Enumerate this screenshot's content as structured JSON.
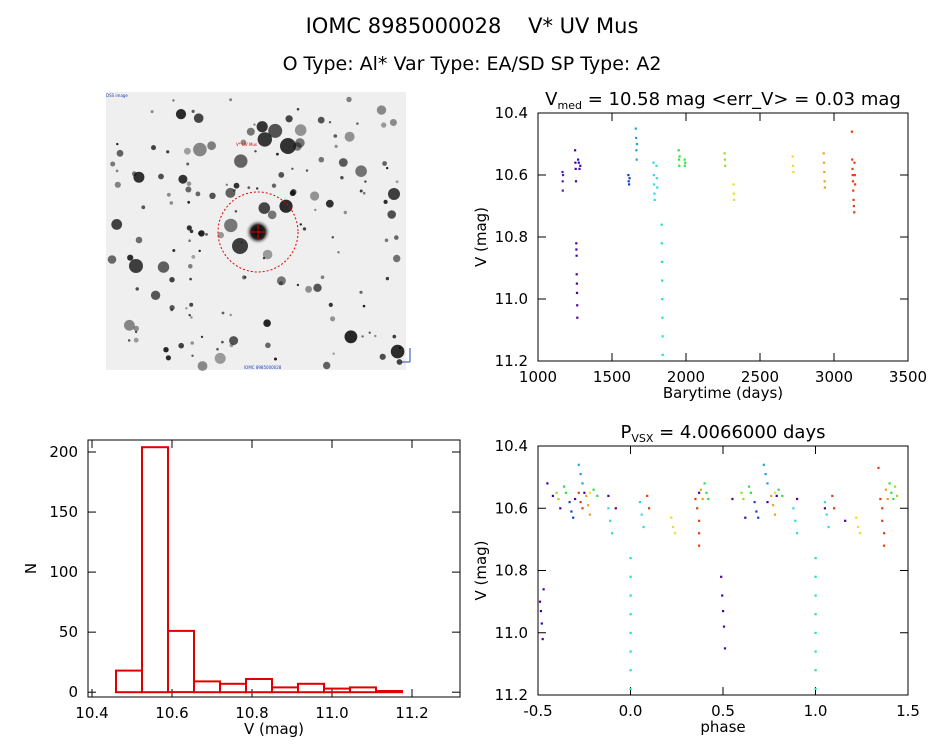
{
  "header": {
    "title_line1": "IOMC 8985000028    V* UV Mus",
    "title_line2": "O Type: Al*  Var Type: EA/SD  SP Type: A2"
  },
  "image_panel": {
    "top_left_label": "DSS image",
    "target_label": "V* UV Mus",
    "bottom_label": "IOMC 8985000028"
  },
  "chart_data": [
    {
      "type": "scatter",
      "title_main": "V",
      "title_sub": "med",
      "title_rest": " = 10.58 mag <err_V> = 0.03 mag",
      "xlabel": "Barytime (days)",
      "ylabel": "V (mag)",
      "xlim": [
        1000,
        3500
      ],
      "ylim": [
        10.4,
        11.2
      ],
      "y_inverted": true,
      "xticks": [
        1000,
        1500,
        2000,
        2500,
        3000,
        3500
      ],
      "yticks": [
        10.4,
        10.6,
        10.8,
        11.0,
        11.2
      ],
      "series": [
        {
          "color": "#5a1aa8",
          "points": [
            [
              1165,
              10.59
            ],
            [
              1166,
              10.62
            ],
            [
              1167,
              10.65
            ],
            [
              1168,
              10.6
            ]
          ]
        },
        {
          "color": "#4b00a0",
          "points": [
            [
              1250,
              10.52
            ],
            [
              1252,
              10.56
            ],
            [
              1254,
              10.58
            ],
            [
              1256,
              10.62
            ],
            [
              1258,
              10.82
            ],
            [
              1259,
              10.84
            ],
            [
              1260,
              10.86
            ],
            [
              1261,
              10.92
            ],
            [
              1262,
              10.95
            ],
            [
              1263,
              10.98
            ],
            [
              1264,
              11.02
            ],
            [
              1265,
              11.06
            ]
          ]
        },
        {
          "color": "#2a10c0",
          "points": [
            [
              1270,
              10.55
            ],
            [
              1275,
              10.56
            ],
            [
              1280,
              10.58
            ],
            [
              1285,
              10.57
            ]
          ]
        },
        {
          "color": "#1040d0",
          "points": [
            [
              1610,
              10.6
            ],
            [
              1612,
              10.62
            ],
            [
              1615,
              10.63
            ],
            [
              1618,
              10.61
            ]
          ]
        },
        {
          "color": "#1fa0e0",
          "points": [
            [
              1660,
              10.45
            ],
            [
              1662,
              10.48
            ],
            [
              1664,
              10.52
            ],
            [
              1666,
              10.55
            ],
            [
              1668,
              10.5
            ]
          ]
        },
        {
          "color": "#30d8e8",
          "points": [
            [
              1780,
              10.56
            ],
            [
              1782,
              10.6
            ],
            [
              1784,
              10.63
            ],
            [
              1786,
              10.66
            ],
            [
              1788,
              10.68
            ],
            [
              1800,
              10.57
            ],
            [
              1802,
              10.61
            ],
            [
              1805,
              10.64
            ]
          ]
        },
        {
          "color": "#20e8a0",
          "points": [
            [
              1835,
              10.76
            ],
            [
              1836,
              10.82
            ],
            [
              1837,
              10.88
            ],
            [
              1838,
              10.94
            ],
            [
              1839,
              11.0
            ],
            [
              1840,
              11.06
            ],
            [
              1841,
              11.12
            ],
            [
              1842,
              11.18
            ]
          ]
        },
        {
          "color": "#30e040",
          "points": [
            [
              1950,
              10.52
            ],
            [
              1952,
              10.55
            ],
            [
              1954,
              10.57
            ],
            [
              1956,
              10.54
            ],
            [
              1990,
              10.55
            ],
            [
              1992,
              10.57
            ],
            [
              1994,
              10.56
            ]
          ]
        },
        {
          "color": "#90e020",
          "points": [
            [
              2260,
              10.53
            ],
            [
              2262,
              10.55
            ],
            [
              2264,
              10.57
            ]
          ]
        },
        {
          "color": "#e8e020",
          "points": [
            [
              2320,
              10.63
            ],
            [
              2322,
              10.66
            ],
            [
              2324,
              10.68
            ],
            [
              2720,
              10.54
            ],
            [
              2722,
              10.57
            ],
            [
              2724,
              10.59
            ]
          ]
        },
        {
          "color": "#f0a020",
          "points": [
            [
              2930,
              10.53
            ],
            [
              2932,
              10.56
            ],
            [
              2934,
              10.59
            ],
            [
              2936,
              10.62
            ],
            [
              2938,
              10.64
            ]
          ]
        },
        {
          "color": "#e04010",
          "points": [
            [
              3120,
              10.46
            ],
            [
              3122,
              10.55
            ],
            [
              3124,
              10.58
            ],
            [
              3126,
              10.6
            ],
            [
              3128,
              10.62
            ],
            [
              3130,
              10.65
            ],
            [
              3132,
              10.68
            ],
            [
              3134,
              10.7
            ],
            [
              3136,
              10.72
            ],
            [
              3138,
              10.56
            ],
            [
              3140,
              10.6
            ],
            [
              3142,
              10.63
            ]
          ]
        }
      ]
    },
    {
      "type": "bar",
      "xlabel": "V (mag)",
      "ylabel": "N",
      "xlim": [
        10.39,
        11.32
      ],
      "ylim": [
        -4,
        210
      ],
      "xticks": [
        10.4,
        10.6,
        10.8,
        11.0,
        11.2
      ],
      "yticks": [
        0,
        50,
        100,
        150,
        200
      ],
      "bin_edges": [
        10.46,
        10.525,
        10.59,
        10.655,
        10.72,
        10.785,
        10.85,
        10.915,
        10.98,
        11.045,
        11.11,
        11.175,
        11.24
      ],
      "values": [
        18,
        204,
        51,
        9,
        7,
        11,
        4,
        7,
        3,
        4,
        1,
        0
      ],
      "color": "#e00000"
    },
    {
      "type": "scatter",
      "title_main": "P",
      "title_sub": "VSX",
      "title_rest": " = 4.0066000 days",
      "xlabel": "phase",
      "ylabel": "V (mag)",
      "xlim": [
        -0.5,
        1.5
      ],
      "ylim": [
        10.4,
        11.2
      ],
      "y_inverted": true,
      "xticks": [
        -0.5,
        0.0,
        0.5,
        1.0,
        1.5
      ],
      "yticks": [
        10.4,
        10.6,
        10.8,
        11.0,
        11.2
      ],
      "series": [
        {
          "color": "#4b00a0",
          "points": [
            [
              -0.49,
              10.9
            ],
            [
              -0.485,
              10.93
            ],
            [
              -0.48,
              10.97
            ],
            [
              -0.475,
              11.02
            ],
            [
              -0.47,
              10.86
            ],
            [
              0.49,
              10.82
            ],
            [
              0.495,
              10.88
            ],
            [
              0.5,
              10.93
            ],
            [
              0.505,
              10.98
            ],
            [
              0.51,
              11.05
            ],
            [
              -0.45,
              10.52
            ],
            [
              -0.42,
              10.56
            ],
            [
              -0.38,
              10.6
            ],
            [
              -0.3,
              10.57
            ],
            [
              -0.25,
              10.55
            ],
            [
              -0.12,
              10.56
            ],
            [
              -0.08,
              10.6
            ],
            [
              0.37,
              10.55
            ],
            [
              0.55,
              10.57
            ],
            [
              0.62,
              10.63
            ],
            [
              0.74,
              10.58
            ],
            [
              0.79,
              10.56
            ],
            [
              0.9,
              10.57
            ],
            [
              1.05,
              10.6
            ],
            [
              1.16,
              10.64
            ]
          ]
        },
        {
          "color": "#1040d0",
          "points": [
            [
              -0.33,
              10.58
            ],
            [
              -0.32,
              10.61
            ],
            [
              -0.31,
              10.63
            ],
            [
              0.67,
              10.58
            ],
            [
              0.68,
              10.61
            ],
            [
              0.69,
              10.63
            ]
          ]
        },
        {
          "color": "#1fa0e0",
          "points": [
            [
              -0.28,
              10.46
            ],
            [
              -0.27,
              10.49
            ],
            [
              -0.26,
              10.52
            ],
            [
              0.72,
              10.46
            ],
            [
              0.73,
              10.49
            ],
            [
              0.74,
              10.52
            ]
          ]
        },
        {
          "color": "#30d8e8",
          "points": [
            [
              -0.12,
              10.6
            ],
            [
              -0.11,
              10.64
            ],
            [
              -0.1,
              10.68
            ],
            [
              0.05,
              10.58
            ],
            [
              0.06,
              10.62
            ],
            [
              0.07,
              10.66
            ],
            [
              0.88,
              10.6
            ],
            [
              0.89,
              10.64
            ],
            [
              0.9,
              10.68
            ],
            [
              1.05,
              10.58
            ],
            [
              1.06,
              10.62
            ],
            [
              1.07,
              10.66
            ]
          ]
        },
        {
          "color": "#20e8a0",
          "points": [
            [
              0.0,
              10.76
            ],
            [
              0.0,
              10.82
            ],
            [
              0.0,
              10.88
            ],
            [
              0.0,
              10.94
            ],
            [
              0.0,
              11.0
            ],
            [
              0.0,
              11.06
            ],
            [
              0.0,
              11.12
            ],
            [
              0.0,
              11.18
            ],
            [
              1.0,
              10.76
            ],
            [
              1.0,
              10.82
            ],
            [
              1.0,
              10.88
            ],
            [
              1.0,
              10.94
            ],
            [
              1.0,
              11.0
            ],
            [
              1.0,
              11.06
            ],
            [
              1.0,
              11.12
            ],
            [
              1.0,
              11.18
            ]
          ]
        },
        {
          "color": "#30e040",
          "points": [
            [
              -0.36,
              10.53
            ],
            [
              -0.35,
              10.55
            ],
            [
              -0.2,
              10.54
            ],
            [
              -0.18,
              10.56
            ],
            [
              0.4,
              10.52
            ],
            [
              0.41,
              10.55
            ],
            [
              0.42,
              10.57
            ],
            [
              0.64,
              10.53
            ],
            [
              0.65,
              10.55
            ],
            [
              0.8,
              10.54
            ],
            [
              0.82,
              10.56
            ],
            [
              1.4,
              10.52
            ],
            [
              1.41,
              10.55
            ],
            [
              1.42,
              10.57
            ]
          ]
        },
        {
          "color": "#90e020",
          "points": [
            [
              -0.4,
              10.55
            ],
            [
              -0.39,
              10.57
            ],
            [
              0.6,
              10.55
            ],
            [
              0.61,
              10.57
            ],
            [
              1.43,
              10.53
            ],
            [
              1.44,
              10.56
            ]
          ]
        },
        {
          "color": "#e8e020",
          "points": [
            [
              0.22,
              10.63
            ],
            [
              0.23,
              10.66
            ],
            [
              0.24,
              10.68
            ],
            [
              1.22,
              10.63
            ],
            [
              1.23,
              10.66
            ],
            [
              1.24,
              10.68
            ],
            [
              -0.22,
              10.55
            ],
            [
              0.78,
              10.55
            ]
          ]
        },
        {
          "color": "#f0a020",
          "points": [
            [
              -0.24,
              10.56
            ],
            [
              -0.23,
              10.59
            ],
            [
              -0.22,
              10.62
            ],
            [
              0.38,
              10.54
            ],
            [
              0.39,
              10.57
            ],
            [
              0.76,
              10.56
            ],
            [
              0.77,
              10.59
            ],
            [
              0.78,
              10.62
            ],
            [
              1.38,
              10.54
            ],
            [
              1.39,
              10.57
            ]
          ]
        },
        {
          "color": "#e04010",
          "points": [
            [
              -0.28,
              10.55
            ],
            [
              -0.27,
              10.58
            ],
            [
              -0.26,
              10.6
            ],
            [
              0.09,
              10.56
            ],
            [
              0.1,
              10.6
            ],
            [
              0.35,
              10.57
            ],
            [
              0.36,
              10.6
            ],
            [
              0.37,
              10.64
            ],
            [
              0.37,
              10.68
            ],
            [
              0.37,
              10.72
            ],
            [
              1.09,
              10.56
            ],
            [
              1.1,
              10.6
            ],
            [
              1.34,
              10.47
            ],
            [
              1.35,
              10.57
            ],
            [
              1.36,
              10.6
            ],
            [
              1.36,
              10.64
            ],
            [
              1.37,
              10.68
            ],
            [
              1.37,
              10.72
            ]
          ]
        }
      ]
    }
  ]
}
